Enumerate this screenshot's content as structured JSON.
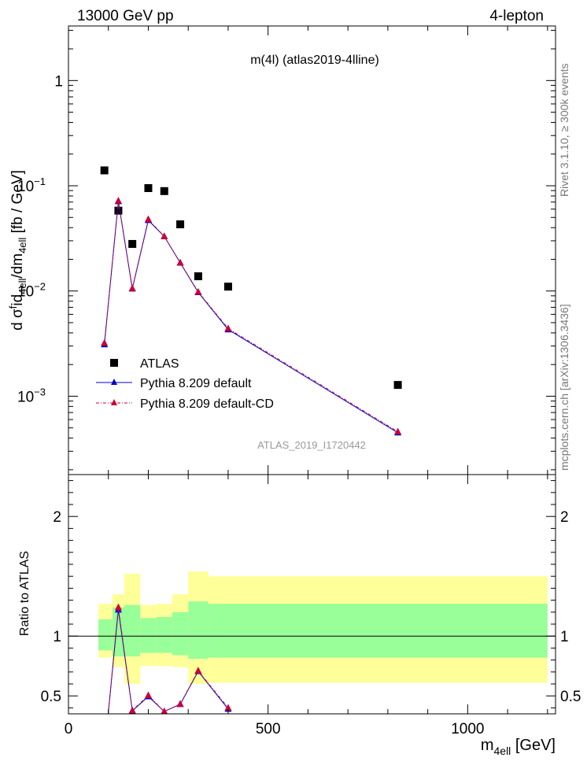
{
  "header": {
    "left": "13000 GeV pp",
    "right": "4-lepton"
  },
  "side_labels": {
    "top": "Rivet 3.1.10, ≥ 300k events",
    "bottom": "mcplots.cern.ch [arXiv:1306.3436]"
  },
  "colors": {
    "data": "#000000",
    "pythia_default": "#0000cc",
    "pythia_cd": "#cc0033",
    "band_inner": "#99ff99",
    "band_outer": "#ffff99"
  },
  "chart_data": [
    {
      "type": "scatter",
      "name": "main",
      "title": "m(4l) (atlas2019-4lline)",
      "ylabel": "d σ^{f}id_{4ell}/dm_{4ell} [fb / GeV]",
      "xlim": [
        0,
        1220
      ],
      "ylim": [
        0.00018,
        3.3
      ],
      "yscale": "log",
      "yticks": [
        {
          "value": 1,
          "label": "1"
        },
        {
          "value": 0.1,
          "label": "10",
          "sup": "−1"
        },
        {
          "value": 0.01,
          "label": "10",
          "sup": "−2"
        },
        {
          "value": 0.001,
          "label": "10",
          "sup": "−3"
        }
      ],
      "watermark": "ATLAS_2019_I1720442",
      "legend": {
        "position": "lower-left",
        "entries": [
          "ATLAS",
          "Pythia 8.209 default",
          "Pythia 8.209 default-CD"
        ]
      },
      "series": [
        {
          "name": "ATLAS",
          "x": [
            90,
            125,
            160,
            200,
            240,
            280,
            325,
            400,
            825
          ],
          "y": [
            0.14,
            0.058,
            0.028,
            0.095,
            0.089,
            0.043,
            0.0138,
            0.011,
            0.00128
          ]
        },
        {
          "name": "Pythia 8.209 default",
          "x": [
            90,
            125,
            160,
            200,
            240,
            280,
            325,
            400,
            825
          ],
          "y": [
            0.0031,
            0.071,
            0.0105,
            0.047,
            0.033,
            0.0185,
            0.0097,
            0.0043,
            0.00045
          ]
        },
        {
          "name": "Pythia 8.209 default-CD",
          "x": [
            90,
            125,
            160,
            200,
            240,
            280,
            325,
            400,
            825
          ],
          "y": [
            0.0032,
            0.072,
            0.0106,
            0.048,
            0.033,
            0.0186,
            0.0098,
            0.0044,
            0.00046
          ]
        }
      ]
    },
    {
      "type": "line",
      "name": "ratio",
      "ylabel": "Ratio to ATLAS",
      "xlabel": "m_{4ell} [GeV]",
      "xlim": [
        0,
        1220
      ],
      "ylim": [
        0.35,
        2.35
      ],
      "xticks": [
        0,
        500,
        1000
      ],
      "yticks": [
        0.5,
        1,
        2
      ],
      "bands": [
        {
          "x0": 75,
          "x1": 110,
          "inner": [
            0.88,
            1.14
          ],
          "outer": [
            0.82,
            1.27
          ]
        },
        {
          "x0": 110,
          "x1": 140,
          "inner": [
            0.83,
            1.24
          ],
          "outer": [
            0.74,
            1.35
          ]
        },
        {
          "x0": 140,
          "x1": 180,
          "inner": [
            0.83,
            1.26
          ],
          "outer": [
            0.6,
            1.52
          ]
        },
        {
          "x0": 180,
          "x1": 220,
          "inner": [
            0.86,
            1.15
          ],
          "outer": [
            0.75,
            1.26
          ]
        },
        {
          "x0": 220,
          "x1": 260,
          "inner": [
            0.86,
            1.16
          ],
          "outer": [
            0.75,
            1.27
          ]
        },
        {
          "x0": 260,
          "x1": 300,
          "inner": [
            0.84,
            1.2
          ],
          "outer": [
            0.74,
            1.35
          ]
        },
        {
          "x0": 300,
          "x1": 350,
          "inner": [
            0.81,
            1.29
          ],
          "outer": [
            0.6,
            1.54
          ]
        },
        {
          "x0": 350,
          "x1": 1200,
          "inner": [
            0.82,
            1.27
          ],
          "outer": [
            0.61,
            1.5
          ]
        }
      ],
      "series": [
        {
          "name": "Pythia 8.209 default",
          "x": [
            90,
            125,
            160,
            200,
            240,
            280,
            325,
            400
          ],
          "y": [
            0.022,
            1.22,
            0.375,
            0.495,
            0.37,
            0.43,
            0.705,
            0.39
          ]
        },
        {
          "name": "Pythia 8.209 default-CD",
          "x": [
            90,
            125,
            160,
            200,
            240,
            280,
            325,
            400
          ],
          "y": [
            0.023,
            1.24,
            0.378,
            0.505,
            0.37,
            0.432,
            0.71,
            0.4
          ]
        }
      ]
    }
  ]
}
